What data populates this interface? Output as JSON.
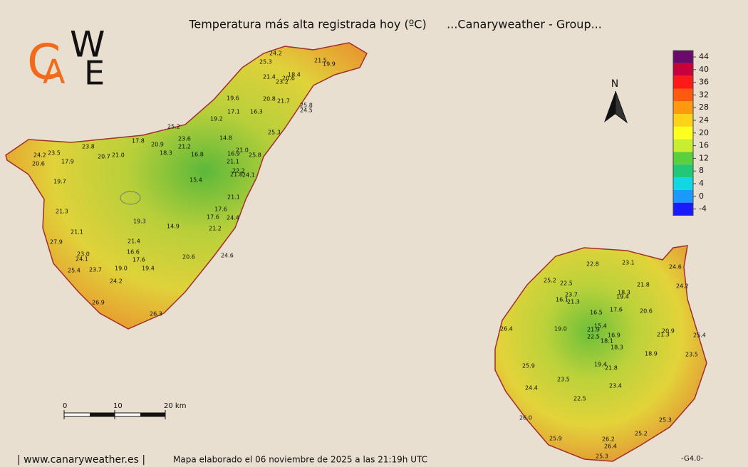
{
  "header": {
    "title": "Temperatura más alta registrada hoy (ºC)",
    "subtitle": "...Canaryweather - Group..."
  },
  "logo": {
    "letters": [
      "C",
      "A",
      "W",
      "E"
    ]
  },
  "north": "N",
  "legend": {
    "ticks": [
      44,
      40,
      36,
      32,
      28,
      24,
      20,
      16,
      12,
      8,
      4,
      0,
      -4
    ],
    "colors": [
      "#6a0a6a",
      "#c8003c",
      "#ff1a1a",
      "#ff5a10",
      "#ff9a10",
      "#ffd21a",
      "#ffff20",
      "#c8ee30",
      "#5ad040",
      "#20c878",
      "#10d8e0",
      "#1a9aff",
      "#1a1aff"
    ]
  },
  "scale_bar": {
    "ticks": [
      0,
      10,
      {
        "value": 20,
        "label": "20 km"
      }
    ]
  },
  "stations": {
    "tenerife": [
      "24.2",
      "25.3",
      "21.5",
      "19.9",
      "21.4",
      "18.4",
      "20.6",
      "23.2",
      "19.6",
      "20.8",
      "21.7",
      "25.8",
      "24.5",
      "17.1",
      "16.3",
      "19.2",
      "25.2",
      "25.3",
      "23.6",
      "17.8",
      "20.9",
      "14.8",
      "21.2",
      "23.8",
      "18.3",
      "21.0",
      "16.8",
      "16.9",
      "25.8",
      "24.2",
      "23.5",
      "20.7",
      "21.0",
      "17.9",
      "20.6",
      "21.1",
      "22.2",
      "21.8",
      "24.1",
      "15.4",
      "19.7",
      "21.1",
      "21.3",
      "17.6",
      "17.6",
      "24.4",
      "19.3",
      "14.9",
      "21.2",
      "21.1",
      "27.9",
      "21.4",
      "16.6",
      "23.0",
      "24.1",
      "20.6",
      "24.6",
      "17.6",
      "19.0",
      "19.4",
      "23.7",
      "25.4",
      "24.2",
      "26.9",
      "26.3"
    ],
    "gran_canaria": [
      "22.8",
      "23.1",
      "24.6",
      "25.2",
      "22.5",
      "21.8",
      "24.2",
      "23.7",
      "18.3",
      "19.4",
      "16.1",
      "21.3",
      "16.5",
      "17.6",
      "20.6",
      "15.4",
      "19.0",
      "21.9",
      "20.9",
      "21.3",
      "16.9",
      "22.5",
      "25.4",
      "18.1",
      "26.4",
      "18.3",
      "23.5",
      "18.9",
      "19.4",
      "21.8",
      "25.9",
      "23.5",
      "23.4",
      "24.4",
      "22.5",
      "26.0",
      "25.3",
      "25.2",
      "25.9",
      "26.2",
      "26.4",
      "25.3"
    ]
  },
  "footer": {
    "site": "| www.canaryweather.es |",
    "note": "Mapa elaborado el 06 noviembre de 2025 a las 21:19h UTC",
    "version": "-G4.0-"
  }
}
